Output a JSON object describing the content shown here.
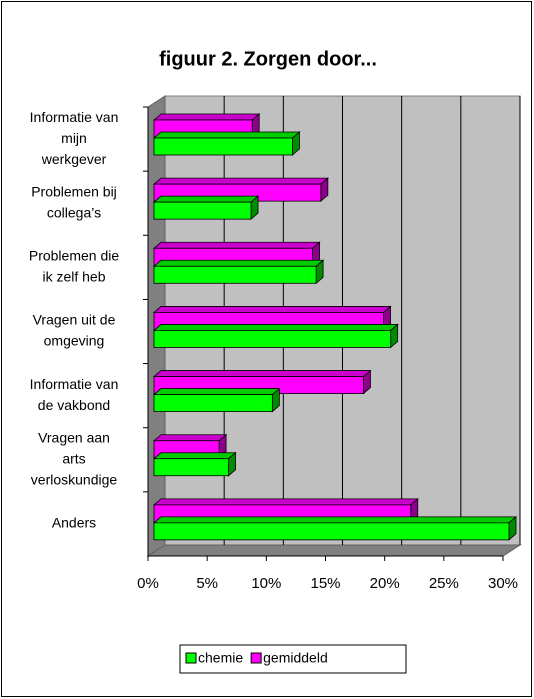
{
  "chart_data": {
    "type": "bar3d",
    "orientation": "horizontal",
    "title": "figuur 2. Zorgen door...",
    "categories": [
      [
        "Informatie van",
        "mijn",
        "werkgever"
      ],
      [
        "Problemen bij",
        "collega’s"
      ],
      [
        "Problemen die",
        "ik zelf heb"
      ],
      [
        "Vragen uit de",
        "omgeving"
      ],
      [
        "Informatie van",
        "de vakbond"
      ],
      [
        "Vragen aan",
        "arts",
        "verloskundige"
      ],
      [
        "Anders"
      ]
    ],
    "series": [
      {
        "name": "chemie",
        "color": "#00ff00",
        "values": [
          11.7,
          8.2,
          13.7,
          20.0,
          10.0,
          6.3,
          30.0
        ]
      },
      {
        "name": "gemiddeld",
        "color": "#ff00ff",
        "values": [
          8.3,
          14.1,
          13.4,
          19.4,
          17.7,
          5.5,
          21.7
        ]
      }
    ],
    "xlim": [
      0,
      30
    ],
    "xticks": [
      {
        "value": 0,
        "label": "0%"
      },
      {
        "value": 5,
        "label": "5%"
      },
      {
        "value": 10,
        "label": "10%"
      },
      {
        "value": 15,
        "label": "15%"
      },
      {
        "value": 20,
        "label": "20%"
      },
      {
        "value": 25,
        "label": "25%"
      },
      {
        "value": 30,
        "label": "30%"
      }
    ],
    "grid": true,
    "legend": "bottom"
  }
}
